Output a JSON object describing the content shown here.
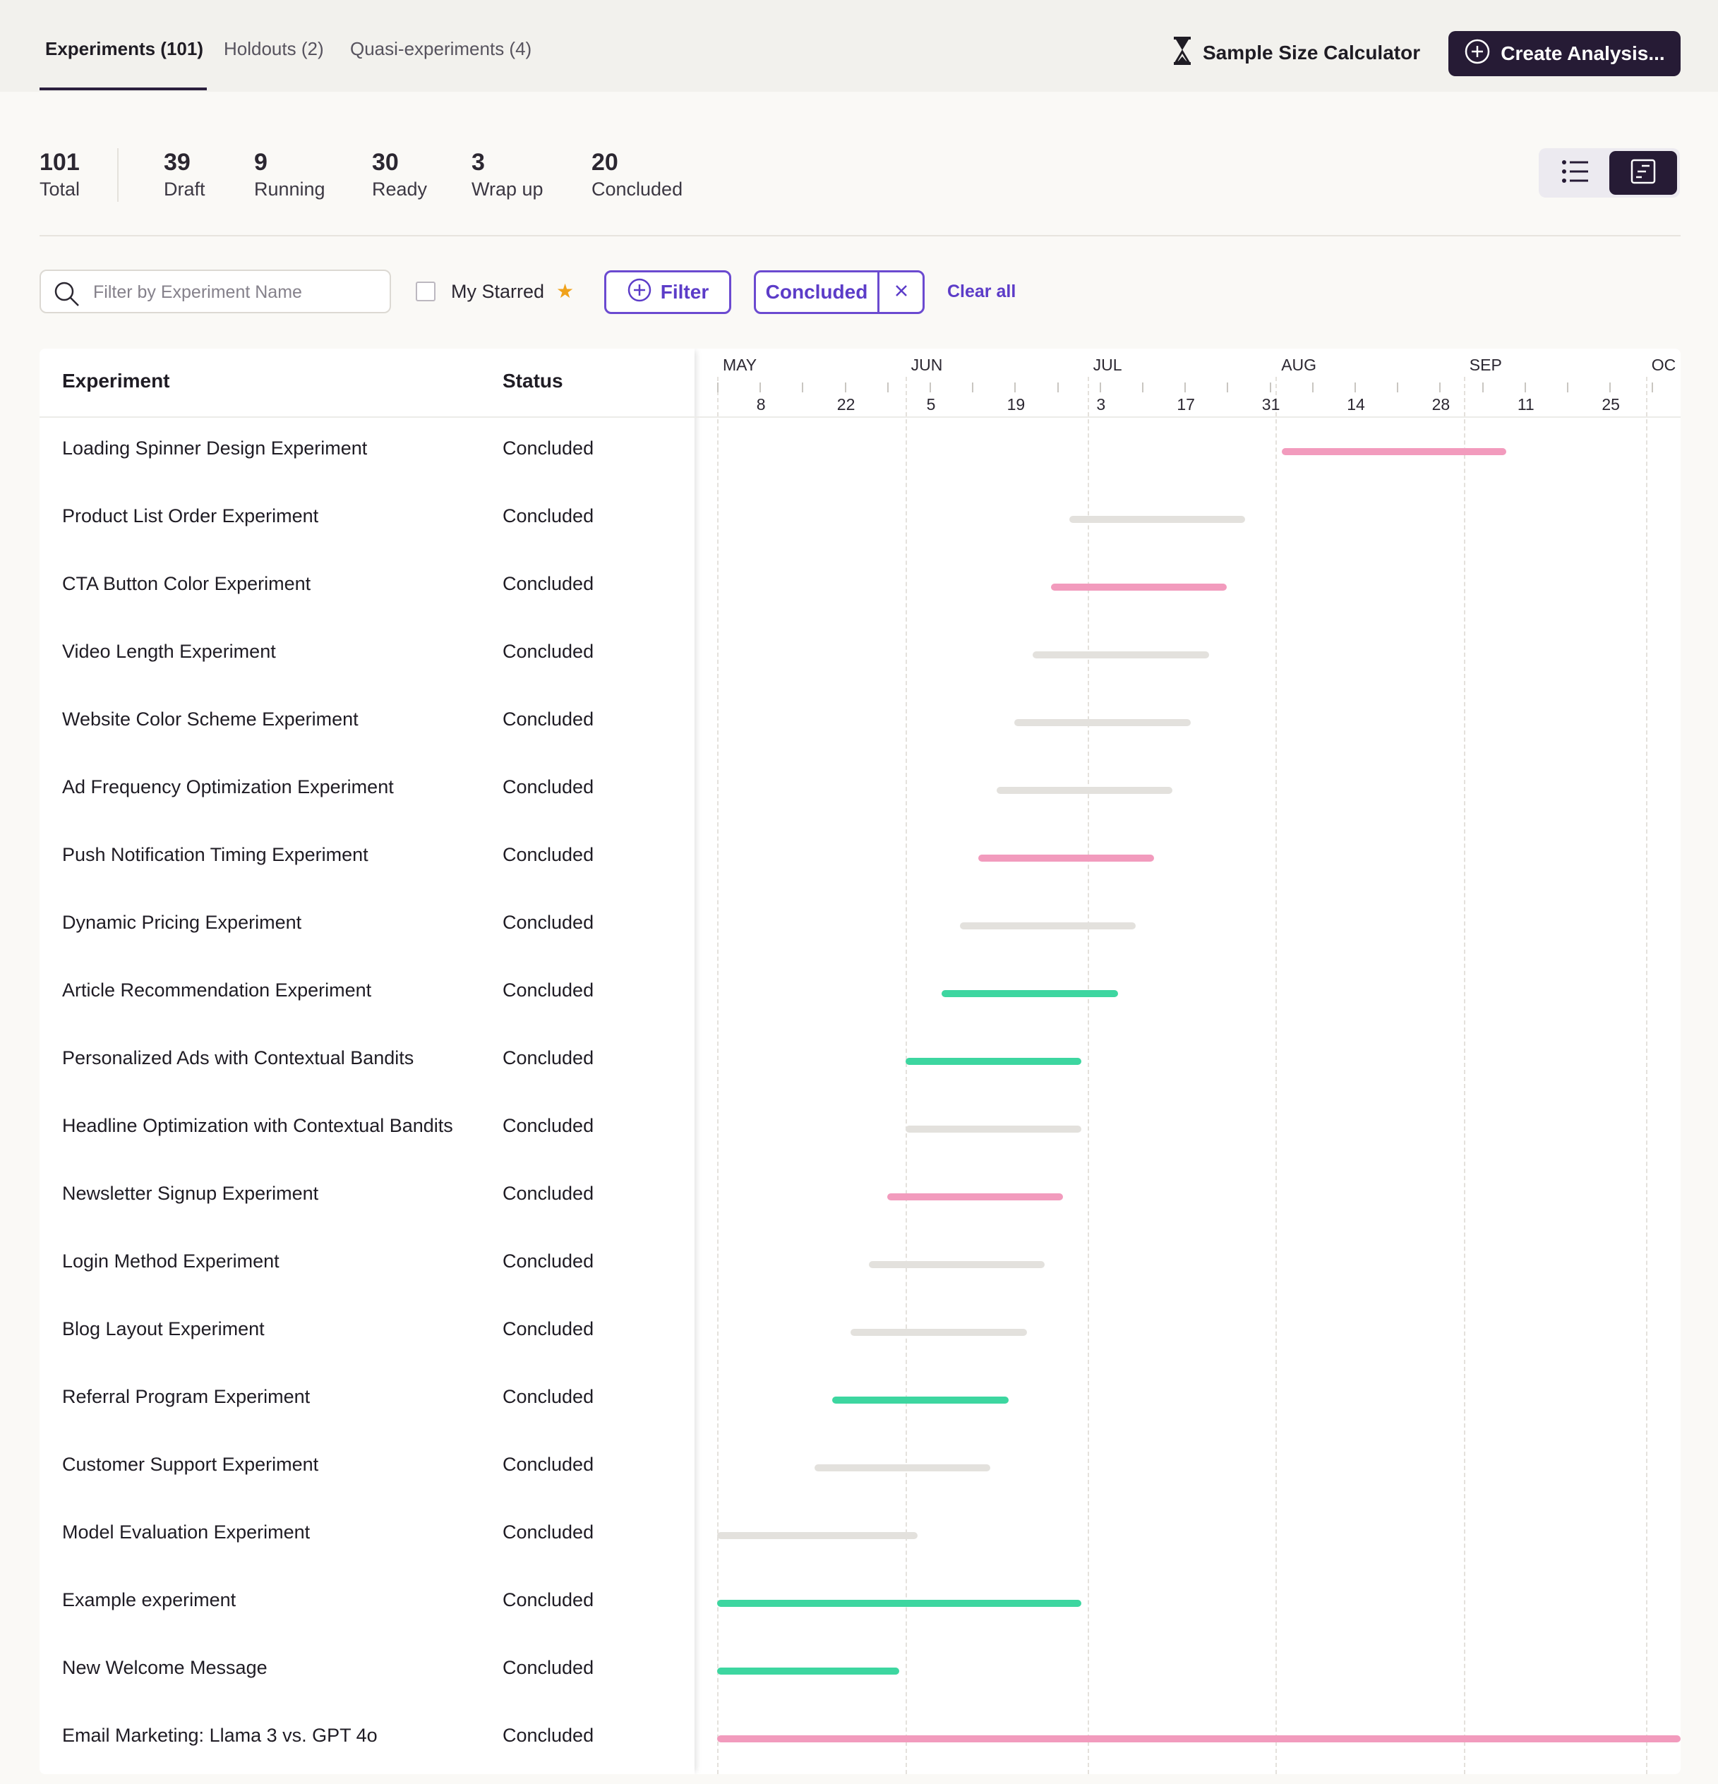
{
  "tabs": [
    {
      "label": "Experiments (101)",
      "active": true
    },
    {
      "label": "Holdouts (2)",
      "active": false
    },
    {
      "label": "Quasi-experiments (4)",
      "active": false
    }
  ],
  "header": {
    "sample_size_label": "Sample Size Calculator",
    "create_label": "Create Analysis..."
  },
  "stats": [
    {
      "num": "101",
      "label": "Total"
    },
    {
      "num": "39",
      "label": "Draft"
    },
    {
      "num": "9",
      "label": "Running"
    },
    {
      "num": "30",
      "label": "Ready"
    },
    {
      "num": "3",
      "label": "Wrap up"
    },
    {
      "num": "20",
      "label": "Concluded"
    }
  ],
  "view_toggle": {
    "selected": "timeline"
  },
  "filters": {
    "search_placeholder": "Filter by Experiment Name",
    "search_value": "",
    "my_starred_label": "My Starred",
    "my_starred_checked": false,
    "filter_label": "Filter",
    "active_chip": "Concluded",
    "clear_all_label": "Clear all"
  },
  "table": {
    "columns": {
      "experiment": "Experiment",
      "status": "Status"
    },
    "rows": [
      {
        "name": "Loading Spinner Design Experiment",
        "status": "Concluded",
        "start": "2024-08-02",
        "end": "2024-09-08",
        "color": "pink"
      },
      {
        "name": "Product List Order Experiment",
        "status": "Concluded",
        "start": "2024-06-28",
        "end": "2024-07-27",
        "color": "gray"
      },
      {
        "name": "CTA Button Color Experiment",
        "status": "Concluded",
        "start": "2024-06-25",
        "end": "2024-07-24",
        "color": "pink"
      },
      {
        "name": "Video Length Experiment",
        "status": "Concluded",
        "start": "2024-06-22",
        "end": "2024-07-21",
        "color": "gray"
      },
      {
        "name": "Website Color Scheme Experiment",
        "status": "Concluded",
        "start": "2024-06-19",
        "end": "2024-07-18",
        "color": "gray"
      },
      {
        "name": "Ad Frequency Optimization Experiment",
        "status": "Concluded",
        "start": "2024-06-16",
        "end": "2024-07-15",
        "color": "gray"
      },
      {
        "name": "Push Notification Timing Experiment",
        "status": "Concluded",
        "start": "2024-06-13",
        "end": "2024-07-12",
        "color": "pink"
      },
      {
        "name": "Dynamic Pricing Experiment",
        "status": "Concluded",
        "start": "2024-06-10",
        "end": "2024-07-09",
        "color": "gray"
      },
      {
        "name": "Article Recommendation Experiment",
        "status": "Concluded",
        "start": "2024-06-07",
        "end": "2024-07-06",
        "color": "green"
      },
      {
        "name": "Personalized Ads with Contextual Bandits",
        "status": "Concluded",
        "start": "2024-06-01",
        "end": "2024-06-30",
        "color": "green"
      },
      {
        "name": "Headline Optimization with Contextual Bandits",
        "status": "Concluded",
        "start": "2024-06-01",
        "end": "2024-06-30",
        "color": "gray"
      },
      {
        "name": "Newsletter Signup Experiment",
        "status": "Concluded",
        "start": "2024-05-29",
        "end": "2024-06-27",
        "color": "pink"
      },
      {
        "name": "Login Method Experiment",
        "status": "Concluded",
        "start": "2024-05-26",
        "end": "2024-06-24",
        "color": "gray"
      },
      {
        "name": "Blog Layout Experiment",
        "status": "Concluded",
        "start": "2024-05-23",
        "end": "2024-06-21",
        "color": "gray"
      },
      {
        "name": "Referral Program Experiment",
        "status": "Concluded",
        "start": "2024-05-20",
        "end": "2024-06-18",
        "color": "green"
      },
      {
        "name": "Customer Support Experiment",
        "status": "Concluded",
        "start": "2024-05-17",
        "end": "2024-06-15",
        "color": "gray"
      },
      {
        "name": "Model Evaluation Experiment",
        "status": "Concluded",
        "start": "2024-05-01",
        "end": "2024-06-03",
        "color": "gray"
      },
      {
        "name": "Example experiment",
        "status": "Concluded",
        "start": "2024-05-01",
        "end": "2024-06-30",
        "color": "green"
      },
      {
        "name": "New Welcome Message",
        "status": "Concluded",
        "start": "2024-05-01",
        "end": "2024-05-31",
        "color": "green"
      },
      {
        "name": "Email Marketing: Llama 3 vs. GPT 4o",
        "status": "Concluded",
        "start": "2024-05-01",
        "end": "2024-10-31",
        "color": "pink"
      }
    ]
  },
  "timeline": {
    "months": [
      "MAY",
      "JUN",
      "JUL",
      "AUG",
      "SEP",
      "OC"
    ],
    "day_labels": [
      "8",
      "22",
      "5",
      "19",
      "3",
      "17",
      "31",
      "14",
      "28",
      "11",
      "25"
    ],
    "colors": {
      "pink": "#f29bbd",
      "gray": "#e3e1dd",
      "green": "#3dd6a0"
    }
  }
}
